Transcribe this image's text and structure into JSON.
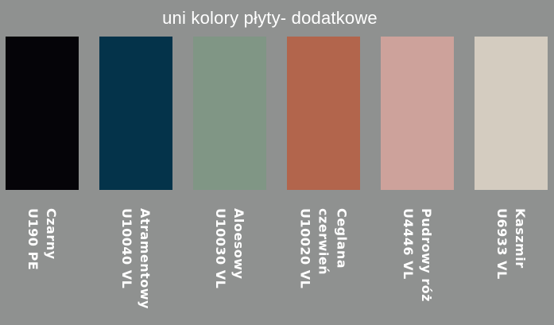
{
  "title": "uni kolory płyty- dodatkowe",
  "colors": {
    "background": "#8f9190",
    "title_text": "#ffffff",
    "label_text": "#ffffff"
  },
  "swatches": [
    {
      "name": "Czarny",
      "code": "U190 PE",
      "label": "Czarny\nU190 PE",
      "hex": "#050408"
    },
    {
      "name": "Atramentowy",
      "code": "U10040 VL",
      "label": "Atramentowy\nU10040 VL",
      "hex": "#04334a"
    },
    {
      "name": "Aloesowy",
      "code": "U10030 VL",
      "label": "Aloesowy\nU10030 VL",
      "hex": "#809685"
    },
    {
      "name": "Ceglana czerwień",
      "code": "U10020 VL",
      "label": "Ceglana\nczerwień\nU10020 VL",
      "hex": "#b2654c"
    },
    {
      "name": "Pudrowy róż",
      "code": "U4446 VL",
      "label": "Pudrowy róż\nU4446 VL",
      "hex": "#cda29b"
    },
    {
      "name": "Kaszmir",
      "code": "U6933 VL",
      "label": "Kaszmir\nU6933 VL",
      "hex": "#d4ccc0"
    }
  ]
}
